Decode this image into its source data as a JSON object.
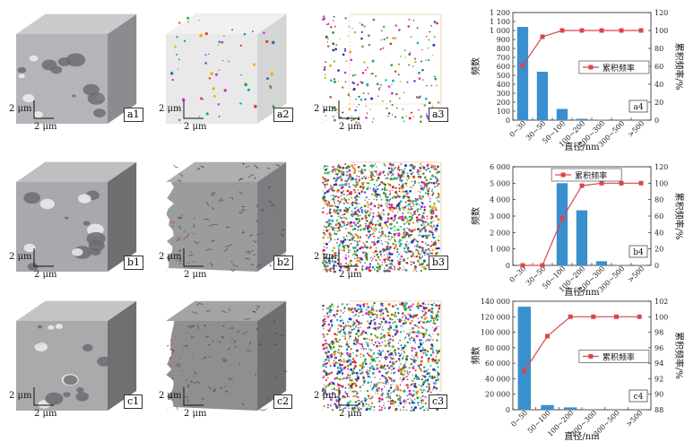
{
  "panels": [
    {
      "id": "a1",
      "type": "solid",
      "base": "#8a8c8f",
      "face": "#b3b5b8",
      "top": "#c9cbcd",
      "seed": 3,
      "row": 0,
      "col": 0
    },
    {
      "id": "a2",
      "type": "ghost",
      "base": "#cfd0d0",
      "face": "#e4e4e4",
      "top": "#eeeeee",
      "seed": 7,
      "row": 0,
      "col": 1
    },
    {
      "id": "a3",
      "type": "dots",
      "density": 0.12,
      "seed": 11,
      "row": 0,
      "col": 2
    },
    {
      "id": "b1",
      "type": "solid",
      "base": "#6d6f71",
      "face": "#a7a9ac",
      "top": "#bdbfc1",
      "seed": 5,
      "row": 1,
      "col": 0
    },
    {
      "id": "b2",
      "type": "rough",
      "base": "#7b7d80",
      "face": "#9a9c9e",
      "top": "#adafb1",
      "seed": 13,
      "row": 1,
      "col": 1
    },
    {
      "id": "b3",
      "type": "dots",
      "density": 0.85,
      "seed": 17,
      "row": 1,
      "col": 2
    },
    {
      "id": "c1",
      "type": "solid",
      "base": "#6f7072",
      "face": "#a9aaac",
      "top": "#c3c4c6",
      "seed": 19,
      "row": 2,
      "col": 0
    },
    {
      "id": "c2",
      "type": "rough",
      "base": "#6e6f71",
      "face": "#8e8f91",
      "top": "#a3a4a6",
      "seed": 23,
      "row": 2,
      "col": 1
    },
    {
      "id": "c3",
      "type": "dots",
      "density": 0.75,
      "seed": 29,
      "row": 2,
      "col": 2
    }
  ],
  "scalebar_label": "2 μm",
  "chart_data": [
    {
      "id": "a4",
      "type": "bar",
      "categories": [
        "0~30",
        "30~50",
        "50~100",
        "100~200",
        "200~300",
        "300~500",
        ">500"
      ],
      "values": [
        1040,
        540,
        125,
        15,
        5,
        2,
        2
      ],
      "cumulative": [
        61,
        93,
        100,
        100,
        100,
        100,
        100
      ],
      "ylabel": "频数",
      "y2label": "累积频率/%",
      "xlabel": "直径/nm",
      "ylim": [
        0,
        1200
      ],
      "yticks": [
        0,
        100,
        200,
        300,
        400,
        500,
        600,
        700,
        800,
        900,
        1000,
        1100,
        1200
      ],
      "ytick_labels": [
        "0",
        "100",
        "200",
        "300",
        "400",
        "500",
        "600",
        "700",
        "800",
        "900",
        "1 000",
        "1 100",
        "1 200"
      ],
      "y2lim": [
        0,
        120
      ],
      "y2ticks": [
        0,
        20,
        40,
        60,
        80,
        100,
        120
      ],
      "legend": "累积频率",
      "legend_pos": "middle-right",
      "panel_label": "a4",
      "bar_color": "#3a8fcf",
      "line_color": "#d9474a"
    },
    {
      "id": "b4",
      "type": "bar",
      "categories": [
        "0~30",
        "30~50",
        "50~100",
        "100~200",
        "200~300",
        "300~500",
        ">500"
      ],
      "values": [
        0,
        0,
        5000,
        3350,
        250,
        20,
        20
      ],
      "cumulative": [
        0,
        0,
        57,
        97,
        100,
        100,
        100
      ],
      "ylabel": "频数",
      "y2label": "累积频率/%",
      "xlabel": "直径/nm",
      "ylim": [
        0,
        6000
      ],
      "yticks": [
        0,
        1000,
        2000,
        3000,
        4000,
        5000,
        6000
      ],
      "ytick_labels": [
        "0",
        "1 000",
        "2 000",
        "3 000",
        "4 000",
        "5 000",
        "6 000"
      ],
      "y2lim": [
        0,
        120
      ],
      "y2ticks": [
        0,
        20,
        40,
        60,
        80,
        100,
        120
      ],
      "legend": "累积频率",
      "legend_pos": "top-center",
      "panel_label": "b4",
      "bar_color": "#3a8fcf",
      "line_color": "#d9474a"
    },
    {
      "id": "c4",
      "type": "bar",
      "categories": [
        "0~50",
        "50~100",
        "100~200",
        "200~300",
        "300~500",
        ">500"
      ],
      "values": [
        133000,
        6000,
        3000,
        200,
        100,
        100
      ],
      "cumulative": [
        93,
        97.5,
        100,
        100,
        100,
        100
      ],
      "ylabel": "频数",
      "y2label": "累积频率/%",
      "xlabel": "直径/nm",
      "ylim": [
        0,
        140000
      ],
      "yticks": [
        0,
        20000,
        40000,
        60000,
        80000,
        100000,
        120000,
        140000
      ],
      "ytick_labels": [
        "0",
        "20 000",
        "40 000",
        "60 000",
        "80 000",
        "100 000",
        "120 000",
        "140 000"
      ],
      "y2lim": [
        88,
        102
      ],
      "y2ticks": [
        88,
        90,
        92,
        94,
        96,
        98,
        100,
        102
      ],
      "legend": "累积频率",
      "legend_pos": "middle-right",
      "panel_label": "c4",
      "bar_color": "#3a8fcf",
      "line_color": "#d9474a"
    }
  ]
}
